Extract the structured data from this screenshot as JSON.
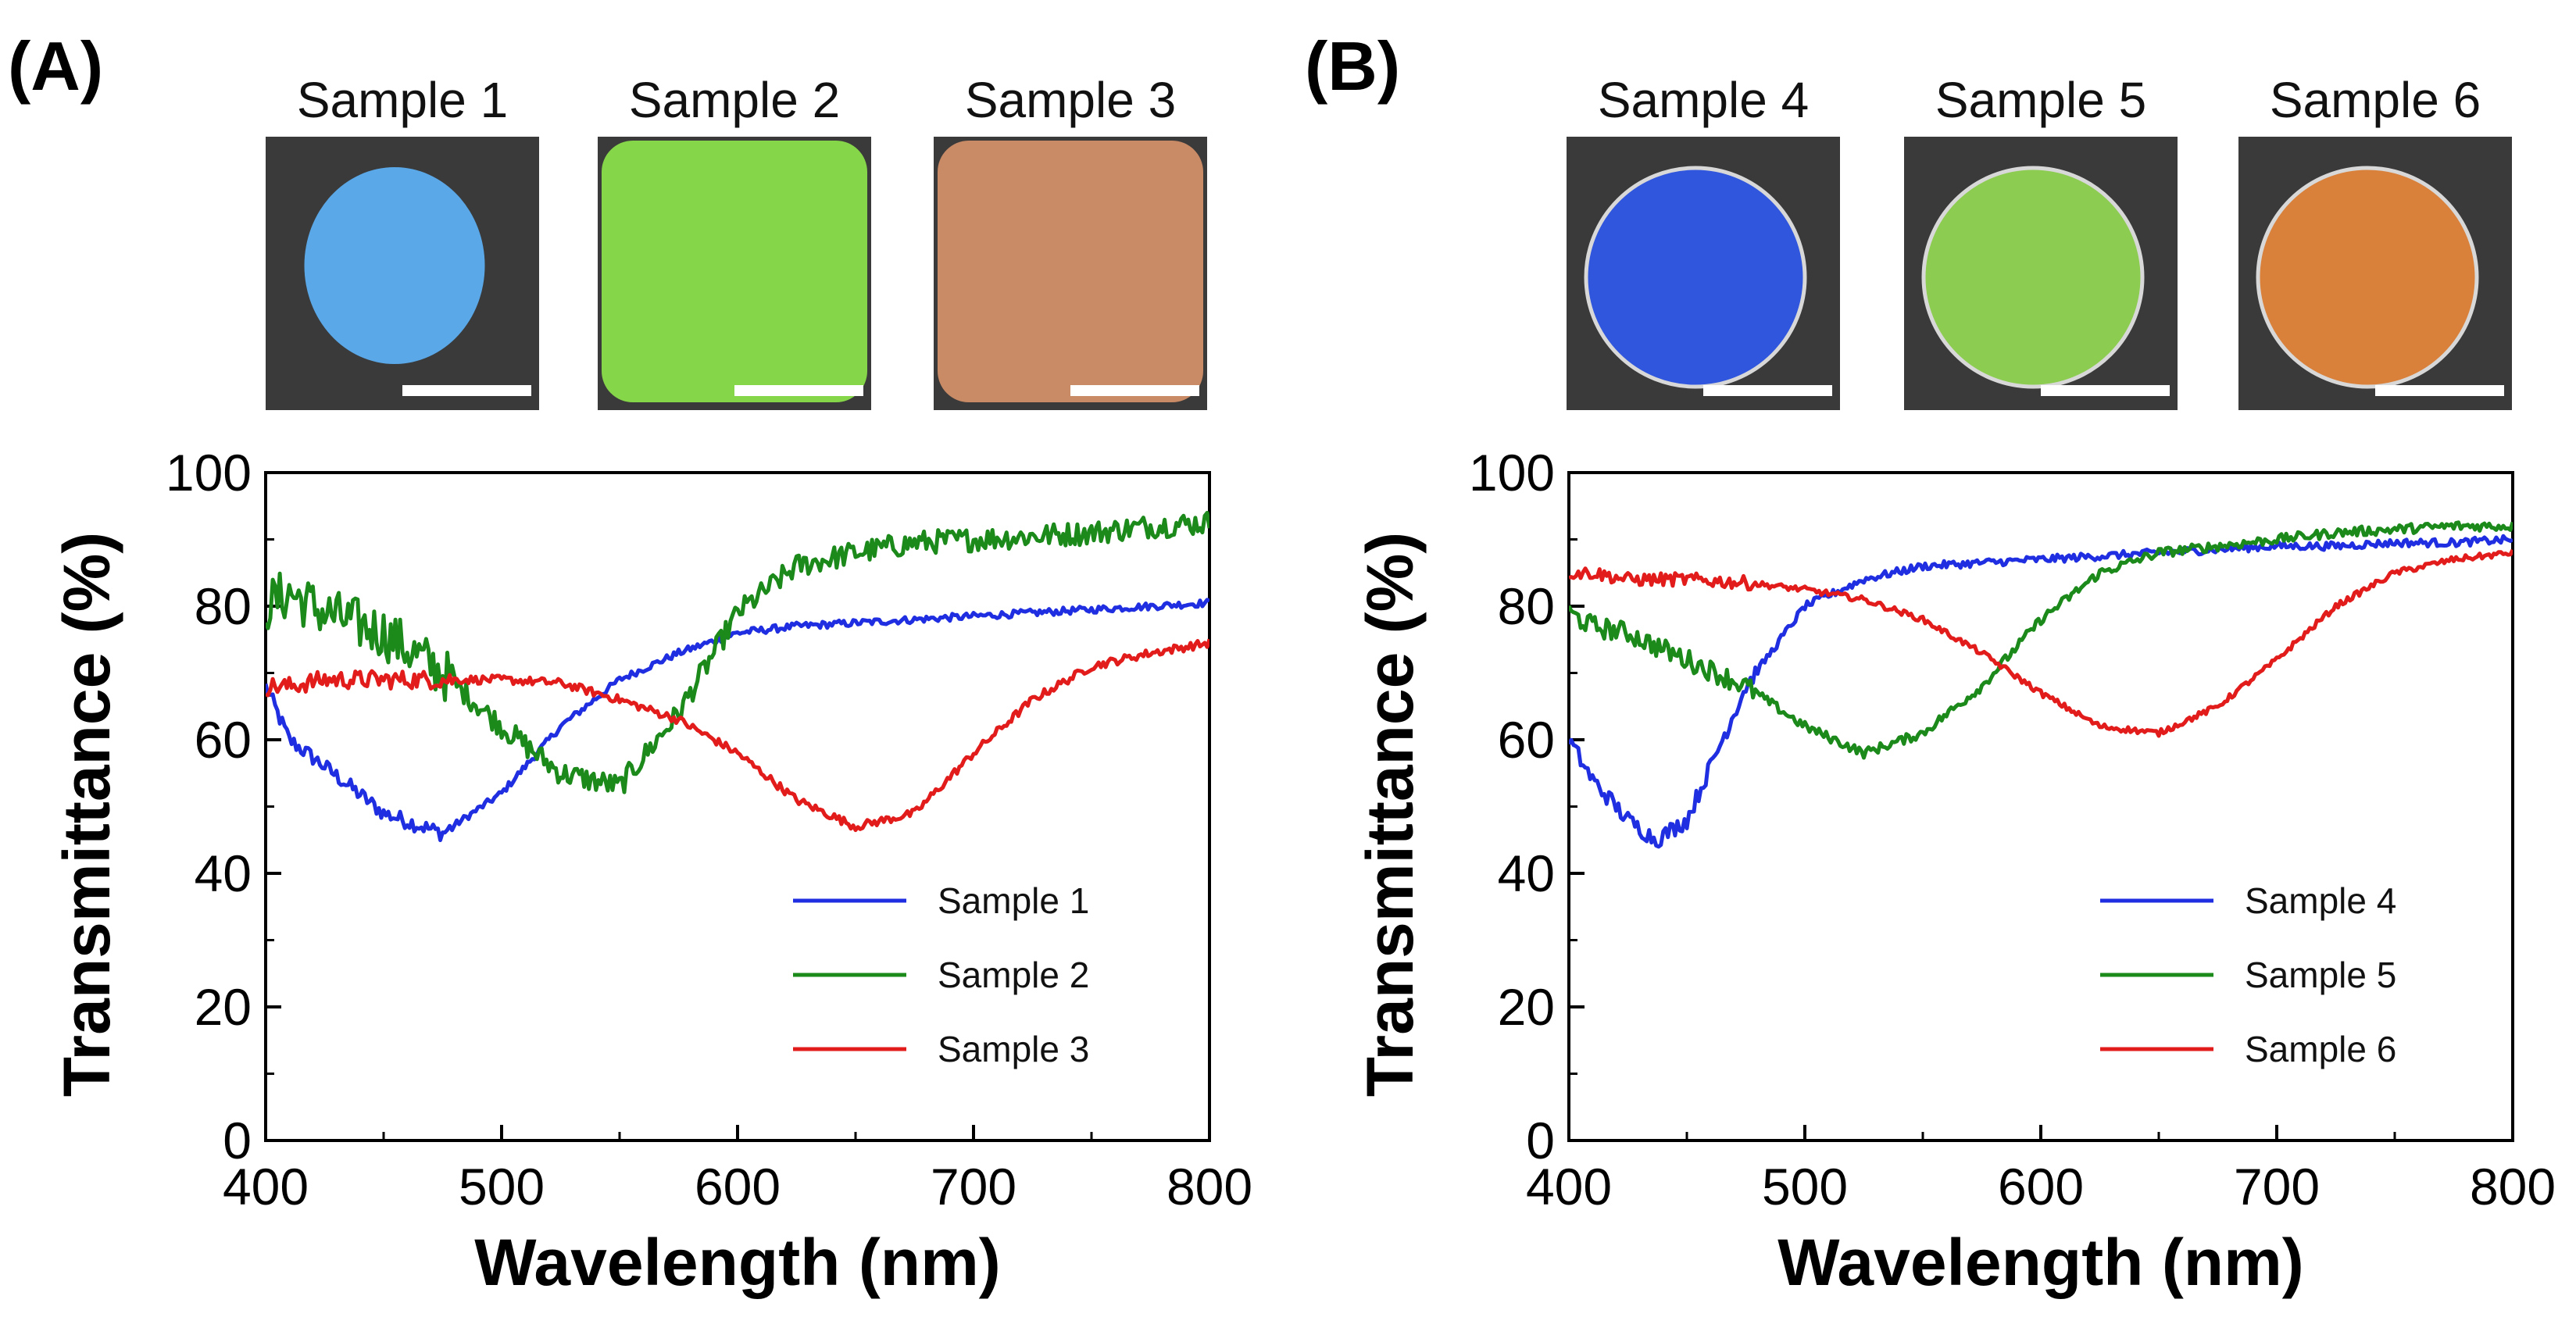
{
  "chart_data": [
    {
      "panel_label": "(A)",
      "type": "line",
      "xlabel": "Wavelength (nm)",
      "ylabel": "Transmittance (%)",
      "xlim": [
        400,
        800
      ],
      "ylim": [
        0,
        100
      ],
      "xticks": [
        400,
        500,
        600,
        700,
        800
      ],
      "yticks": [
        0,
        20,
        40,
        60,
        80,
        100
      ],
      "grid": false,
      "legend_position": "bottom-right",
      "photo_titles": [
        "Sample 1",
        "Sample 2",
        "Sample 3"
      ],
      "photo_colors": [
        "#5aa8e8",
        "#86d64a",
        "#c98a66"
      ],
      "x": [
        400,
        410,
        425,
        450,
        475,
        500,
        525,
        550,
        575,
        600,
        625,
        650,
        675,
        700,
        725,
        750,
        775,
        800
      ],
      "series": [
        {
          "name": "Sample 1",
          "color": "#1f2ee0",
          "noise": 1.2,
          "values": [
            68,
            60,
            56,
            49,
            46,
            52,
            62,
            69,
            73,
            76,
            77,
            77.5,
            78,
            78.5,
            79,
            79.5,
            80,
            80.5
          ]
        },
        {
          "name": "Sample 2",
          "color": "#1b8a1b",
          "noise": 4.0,
          "values": [
            80,
            82,
            79,
            76,
            70,
            62,
            55,
            53,
            64,
            79,
            86,
            88,
            89.5,
            90,
            90.5,
            91,
            92,
            92.5
          ]
        },
        {
          "name": "Sample 3",
          "color": "#e21b1b",
          "noise": 1.4,
          "values": [
            68,
            68,
            69,
            69,
            69,
            69,
            68.5,
            66,
            63,
            58,
            51,
            47,
            49,
            58,
            66,
            71,
            73,
            74.5
          ]
        }
      ]
    },
    {
      "panel_label": "(B)",
      "type": "line",
      "xlabel": "Wavelength (nm)",
      "ylabel": "Transmittance (%)",
      "xlim": [
        400,
        800
      ],
      "ylim": [
        0,
        100
      ],
      "xticks": [
        400,
        500,
        600,
        700,
        800
      ],
      "yticks": [
        0,
        20,
        40,
        60,
        80,
        100
      ],
      "grid": false,
      "legend_position": "bottom-right",
      "photo_titles": [
        "Sample 4",
        "Sample 5",
        "Sample 6"
      ],
      "photo_colors": [
        "#2f56dc",
        "#8ccc50",
        "#d9813a"
      ],
      "x": [
        400,
        410,
        425,
        437,
        450,
        475,
        500,
        525,
        550,
        575,
        600,
        625,
        650,
        675,
        700,
        725,
        750,
        775,
        800
      ],
      "series": [
        {
          "name": "Sample 4",
          "color": "#1f2ee0",
          "noise": 1.3,
          "values": [
            60,
            54,
            48,
            45,
            48,
            68,
            80,
            84,
            86,
            86.5,
            87,
            87.5,
            88,
            88.5,
            89,
            89,
            89.5,
            89.5,
            90
          ]
        },
        {
          "name": "Sample 5",
          "color": "#1b8a1b",
          "noise": 1.6,
          "values": [
            79,
            77,
            76,
            74,
            72,
            68,
            62,
            58,
            61,
            68,
            78,
            85,
            88,
            89,
            90,
            91,
            91.5,
            92,
            92
          ]
        },
        {
          "name": "Sample 6",
          "color": "#e21b1b",
          "noise": 1.0,
          "values": [
            85,
            85,
            84,
            84,
            84,
            83.5,
            82.5,
            81,
            78,
            73,
            67,
            62,
            61,
            65,
            72,
            80,
            85,
            87,
            88
          ]
        }
      ]
    }
  ]
}
